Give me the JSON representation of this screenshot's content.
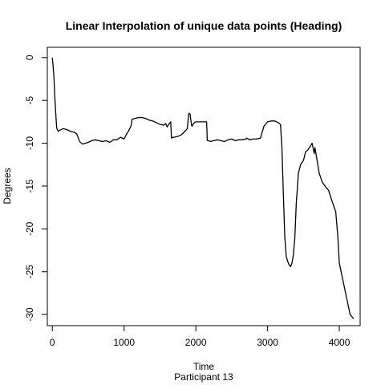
{
  "chart_data": {
    "type": "line",
    "title": "Linear Interpolation of unique data points (Heading)",
    "xlabel": "Time",
    "sublabel": "Participant  13",
    "ylabel": "Degrees",
    "xlim": [
      -70,
      4290
    ],
    "ylim": [
      -31.3,
      1.2
    ],
    "x_ticks": [
      0,
      1000,
      2000,
      3000,
      4000
    ],
    "x_tick_labels": [
      "0",
      "1000",
      "2000",
      "3000",
      "4000"
    ],
    "y_ticks": [
      0,
      -5,
      -10,
      -15,
      -20,
      -25,
      -30
    ],
    "y_tick_labels": [
      "0",
      "-5",
      "-10",
      "-15",
      "-20",
      "-25",
      "-30"
    ],
    "grid": false,
    "line_color": "#000000",
    "series": [
      {
        "x": [
          0,
          20,
          40,
          60,
          80,
          100,
          150,
          200,
          250,
          300,
          340,
          380,
          420,
          460,
          500,
          550,
          600,
          650,
          700,
          750,
          800,
          850,
          900,
          950,
          1000,
          1030,
          1060,
          1090,
          1100,
          1110,
          1150,
          1200,
          1250,
          1300,
          1350,
          1400,
          1450,
          1500,
          1550,
          1580,
          1600,
          1630,
          1650,
          1660,
          1680,
          1700,
          1750,
          1800,
          1850,
          1880,
          1900,
          1905,
          1920,
          1940,
          1950,
          1960,
          1980,
          2000,
          2050,
          2100,
          2150,
          2160,
          2180,
          2200,
          2250,
          2300,
          2350,
          2400,
          2450,
          2500,
          2550,
          2600,
          2650,
          2700,
          2710,
          2750,
          2800,
          2850,
          2900,
          2950,
          3000,
          3050,
          3100,
          3150,
          3180,
          3200,
          3220,
          3240,
          3260,
          3280,
          3300,
          3320,
          3340,
          3360,
          3380,
          3400,
          3430,
          3460,
          3500,
          3530,
          3560,
          3600,
          3620,
          3640,
          3650,
          3660,
          3680,
          3700,
          3720,
          3740,
          3760,
          3800,
          3850,
          3900,
          3950,
          3980,
          4000,
          4050,
          4100,
          4150,
          4200
        ],
        "y": [
          0,
          -2,
          -5.5,
          -8.2,
          -8.6,
          -8.5,
          -8.3,
          -8.4,
          -8.6,
          -8.7,
          -8.9,
          -9.8,
          -10.1,
          -10.0,
          -9.9,
          -9.7,
          -9.6,
          -9.7,
          -9.8,
          -9.7,
          -9.9,
          -9.6,
          -9.6,
          -9.3,
          -9.5,
          -9.0,
          -8.6,
          -8.1,
          -7.9,
          -7.2,
          -7.1,
          -7.0,
          -7.0,
          -7.1,
          -7.3,
          -7.4,
          -7.6,
          -7.8,
          -7.9,
          -7.7,
          -8.1,
          -7.7,
          -7.5,
          -9.4,
          -9.3,
          -9.3,
          -9.2,
          -9.0,
          -8.6,
          -8.3,
          -6.6,
          -6.5,
          -6.6,
          -7.9,
          -8.0,
          -7.8,
          -7.6,
          -7.5,
          -7.5,
          -7.5,
          -7.5,
          -9.7,
          -9.7,
          -9.8,
          -9.7,
          -9.6,
          -9.7,
          -9.8,
          -9.6,
          -9.5,
          -9.7,
          -9.6,
          -9.6,
          -9.5,
          -9.4,
          -9.6,
          -9.5,
          -9.5,
          -9.4,
          -8.0,
          -7.5,
          -7.4,
          -7.4,
          -7.6,
          -7.8,
          -10.5,
          -16.0,
          -21.0,
          -23.2,
          -23.8,
          -24.2,
          -24.4,
          -24.0,
          -23.0,
          -21.0,
          -17.0,
          -13.5,
          -12.5,
          -12.0,
          -11.0,
          -10.8,
          -10.3,
          -10.0,
          -10.8,
          -11.2,
          -10.5,
          -11.5,
          -12.5,
          -13.5,
          -14.0,
          -14.5,
          -15.0,
          -15.5,
          -16.8,
          -18.0,
          -21.0,
          -24.0,
          -26.0,
          -28.0,
          -30.0,
          -30.5
        ]
      }
    ]
  }
}
